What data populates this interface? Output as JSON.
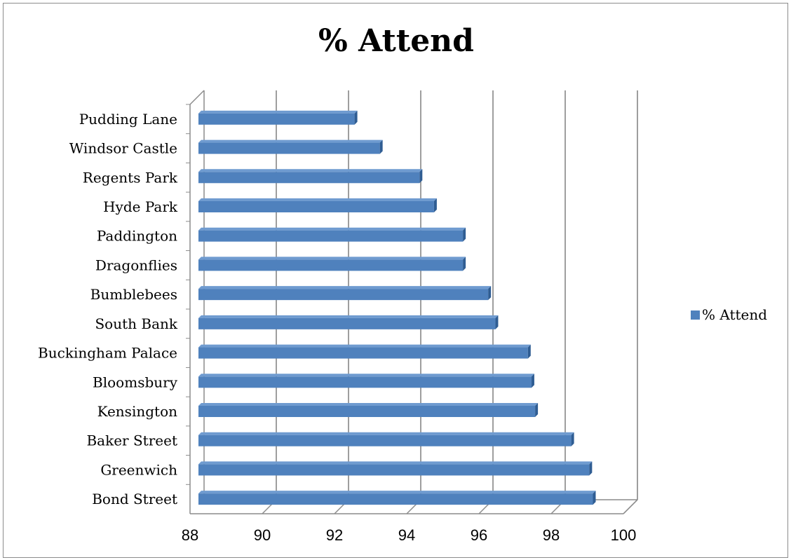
{
  "chart_data": {
    "type": "bar",
    "orientation": "horizontal",
    "title": "% Attend",
    "xlabel": "",
    "ylabel": "",
    "categories": [
      "Pudding Lane",
      "Windsor Castle",
      "Regents Park",
      "Hyde Park",
      "Paddington",
      "Dragonflies",
      "Bumblebees",
      "South Bank",
      "Buckingham Palace",
      "Bloomsbury",
      "Kensington",
      "Baker Street",
      "Greenwich",
      "Bond Street"
    ],
    "series": [
      {
        "name": "% Attend",
        "values": [
          92.4,
          93.1,
          94.2,
          94.6,
          95.4,
          95.4,
          96.1,
          96.3,
          97.2,
          97.3,
          97.4,
          98.4,
          98.9,
          99.0
        ]
      }
    ],
    "xlim": [
      88,
      100
    ],
    "xticks": [
      88,
      90,
      92,
      94,
      96,
      98,
      100
    ],
    "grid": true,
    "legend": "right",
    "colors": {
      "bar": "#4f81bd",
      "bar_top": "#6f9bd0",
      "bar_side": "#2f5d93",
      "grid": "#7f7f7f"
    }
  }
}
